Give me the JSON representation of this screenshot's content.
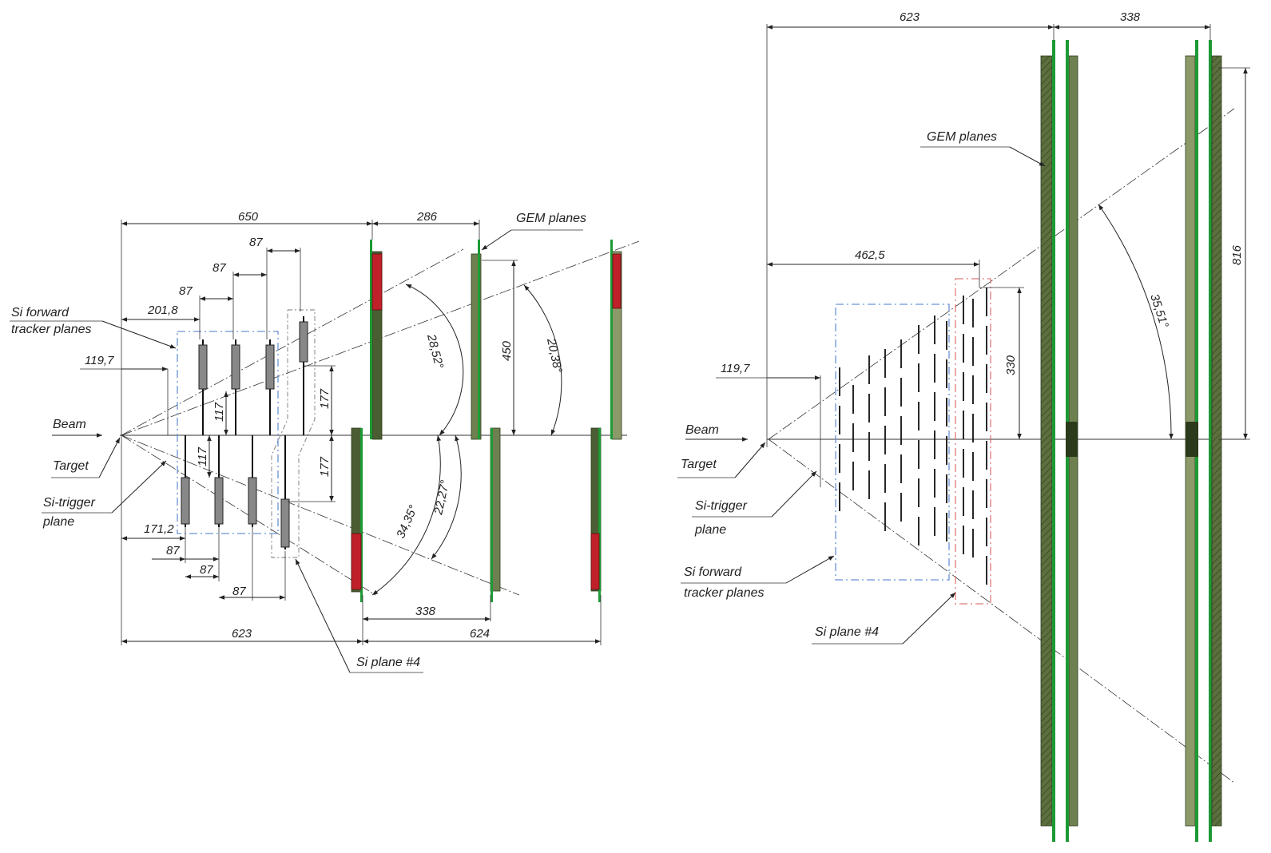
{
  "left_view": {
    "labels": {
      "beam": "Beam",
      "target": "Target",
      "si_trigger_line1": "Si-trigger",
      "si_trigger_line2": "plane",
      "si_forward_line1": "Si forward",
      "si_forward_line2": "tracker planes",
      "gem_planes": "GEM planes",
      "si_plane4": "Si plane #4"
    },
    "dimensions": {
      "d650": "650",
      "d286": "286",
      "d87_top3": "87",
      "d87_top2": "87",
      "d87_top1": "87",
      "d201_8": "201,8",
      "d119_7": "119,7",
      "d117_up": "117",
      "d117_down": "117",
      "d177_up": "177",
      "d177_down": "177",
      "d450": "450",
      "a28_52": "28,52°",
      "a20_38": "20,38°",
      "a34_35": "34,35°",
      "a22_27": "22,27°",
      "d171_2": "171,2",
      "d87_bot1": "87",
      "d87_bot2": "87",
      "d87_bot3": "87",
      "d338": "338",
      "d623": "623",
      "d624": "624"
    }
  },
  "right_view": {
    "labels": {
      "beam": "Beam",
      "target": "Target",
      "si_trigger_line1": "Si-trigger",
      "si_trigger_line2": "plane",
      "si_forward_line1": "Si forward",
      "si_forward_line2": "tracker planes",
      "gem_planes": "GEM planes",
      "si_plane4": "Si plane #4"
    },
    "dimensions": {
      "d623": "623",
      "d338": "338",
      "d462_5": "462,5",
      "d119_7": "119,7",
      "d330": "330",
      "d816": "816",
      "a35_51": "35,51°"
    }
  },
  "colors": {
    "gem_plate": "#4b5e33",
    "gem_green": "#1d9a35",
    "gem_red": "#c0202a",
    "forward_box": "#6a93d6",
    "plane4_box": "#e07a7a"
  }
}
